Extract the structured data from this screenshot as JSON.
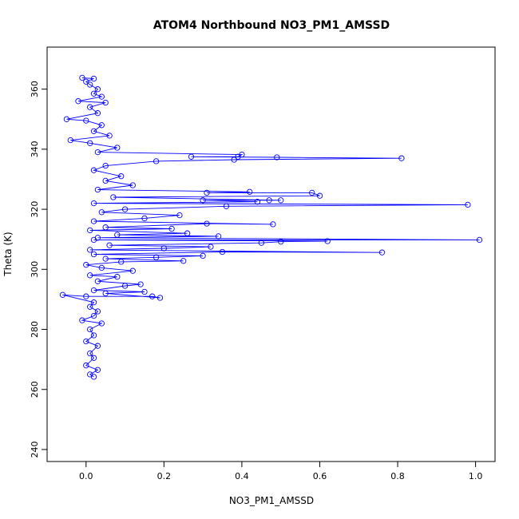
{
  "chart_data": {
    "type": "scatter",
    "title": "ATOM4 Northbound NO3_PM1_AMSSD",
    "xlabel": "NO3_PM1_AMSSD",
    "ylabel": "Theta (K)",
    "xlim": [
      -0.1,
      1.05
    ],
    "ylim": [
      236,
      374
    ],
    "xticks": [
      "0.0",
      "0.2",
      "0.4",
      "0.6",
      "0.8",
      "1.0"
    ],
    "yticks": [
      "240",
      "260",
      "280",
      "300",
      "320",
      "340",
      "360"
    ],
    "grid": false,
    "connected": true,
    "marker": "open-circle",
    "color": "#0000ff",
    "series": [
      {
        "points": [
          [
            0.02,
            264.2
          ],
          [
            0.01,
            265.0
          ],
          [
            0.03,
            266.5
          ],
          [
            0.0,
            268.0
          ],
          [
            0.02,
            270.5
          ],
          [
            0.01,
            272.0
          ],
          [
            0.03,
            274.5
          ],
          [
            0.0,
            276.0
          ],
          [
            0.02,
            278.0
          ],
          [
            0.01,
            280.0
          ],
          [
            0.04,
            282.0
          ],
          [
            -0.01,
            283.0
          ],
          [
            0.02,
            284.5
          ],
          [
            0.03,
            286.0
          ],
          [
            0.01,
            287.5
          ],
          [
            0.02,
            289.0
          ],
          [
            -0.06,
            291.5
          ],
          [
            0.0,
            291.0
          ],
          [
            0.17,
            291.0
          ],
          [
            0.19,
            290.5
          ],
          [
            0.05,
            292.0
          ],
          [
            0.15,
            292.5
          ],
          [
            0.02,
            293.0
          ],
          [
            0.1,
            294.5
          ],
          [
            0.14,
            295.0
          ],
          [
            0.03,
            296.0
          ],
          [
            0.08,
            297.5
          ],
          [
            0.01,
            298.0
          ],
          [
            0.12,
            299.5
          ],
          [
            0.04,
            300.5
          ],
          [
            0.0,
            301.5
          ],
          [
            0.09,
            302.5
          ],
          [
            0.25,
            302.8
          ],
          [
            0.05,
            303.5
          ],
          [
            0.18,
            304.0
          ],
          [
            0.3,
            304.5
          ],
          [
            0.02,
            305.0
          ],
          [
            0.35,
            305.8
          ],
          [
            0.76,
            305.6
          ],
          [
            0.01,
            306.5
          ],
          [
            0.2,
            307.0
          ],
          [
            0.32,
            307.5
          ],
          [
            0.06,
            308.0
          ],
          [
            0.45,
            308.8
          ],
          [
            0.5,
            309.2
          ],
          [
            0.62,
            309.4
          ],
          [
            0.02,
            309.8
          ],
          [
            1.01,
            309.8
          ],
          [
            0.03,
            310.5
          ],
          [
            0.34,
            311.0
          ],
          [
            0.08,
            311.5
          ],
          [
            0.26,
            312.0
          ],
          [
            0.01,
            313.0
          ],
          [
            0.22,
            313.5
          ],
          [
            0.05,
            314.0
          ],
          [
            0.31,
            315.2
          ],
          [
            0.48,
            315.0
          ],
          [
            0.02,
            316.0
          ],
          [
            0.15,
            317.0
          ],
          [
            0.24,
            318.0
          ],
          [
            0.04,
            319.0
          ],
          [
            0.1,
            320.0
          ],
          [
            0.36,
            321.0
          ],
          [
            0.98,
            321.5
          ],
          [
            0.02,
            322.0
          ],
          [
            0.44,
            322.5
          ],
          [
            0.3,
            323.0
          ],
          [
            0.47,
            323.0
          ],
          [
            0.5,
            323.0
          ],
          [
            0.07,
            324.0
          ],
          [
            0.6,
            324.5
          ],
          [
            0.58,
            325.5
          ],
          [
            0.31,
            325.5
          ],
          [
            0.42,
            325.8
          ],
          [
            0.03,
            326.5
          ],
          [
            0.12,
            328.0
          ],
          [
            0.05,
            329.5
          ],
          [
            0.09,
            331.0
          ],
          [
            0.02,
            333.0
          ],
          [
            0.05,
            334.5
          ],
          [
            0.18,
            336.0
          ],
          [
            0.38,
            336.5
          ],
          [
            0.81,
            337.0
          ],
          [
            0.49,
            337.3
          ],
          [
            0.27,
            337.5
          ],
          [
            0.39,
            337.5
          ],
          [
            0.4,
            338.2
          ],
          [
            0.03,
            339.0
          ],
          [
            0.08,
            340.5
          ],
          [
            0.01,
            342.0
          ],
          [
            -0.04,
            343.0
          ],
          [
            0.06,
            344.5
          ],
          [
            0.02,
            346.0
          ],
          [
            0.04,
            348.0
          ],
          [
            0.0,
            349.5
          ],
          [
            -0.05,
            350.0
          ],
          [
            0.03,
            352.0
          ],
          [
            0.01,
            354.0
          ],
          [
            0.05,
            355.5
          ],
          [
            -0.02,
            356.0
          ],
          [
            0.04,
            357.5
          ],
          [
            0.02,
            358.5
          ],
          [
            0.03,
            360.0
          ],
          [
            0.01,
            361.5
          ],
          [
            0.0,
            362.5
          ],
          [
            0.02,
            363.5
          ],
          [
            -0.01,
            363.8
          ]
        ]
      }
    ]
  }
}
